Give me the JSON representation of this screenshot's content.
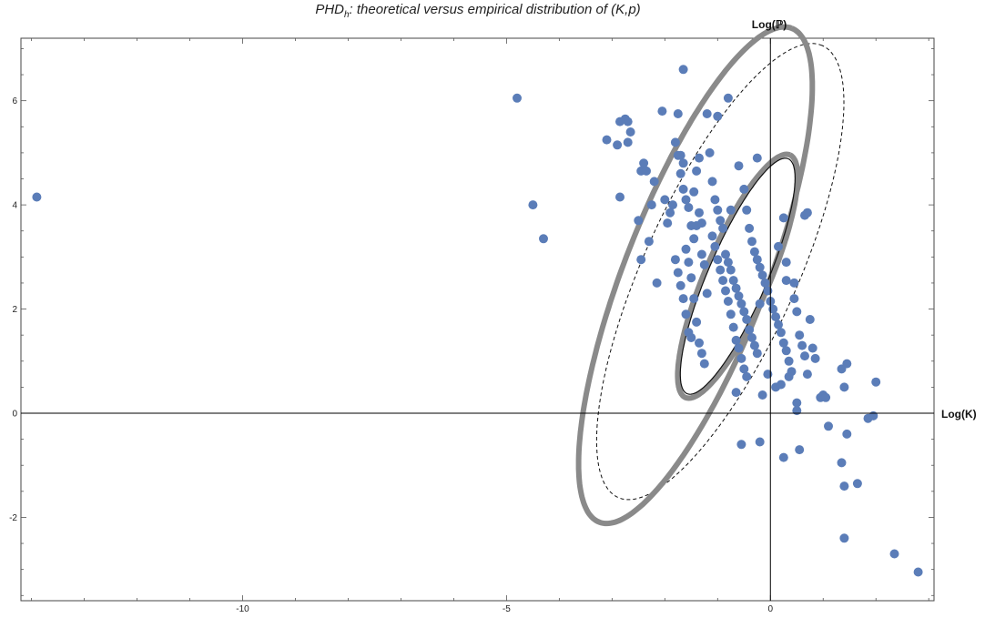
{
  "chart_data": {
    "type": "scatter",
    "title_parts": [
      "PHD",
      "h",
      ": theoretical versus empirical distribution of ",
      "(K,p)"
    ],
    "xlabel": "Log(K)",
    "ylabel": "Log(ℙ)",
    "xlim": [
      -14.2,
      3.1
    ],
    "ylim": [
      -3.6,
      7.2
    ],
    "x_ticks": [
      -10,
      -5,
      0
    ],
    "x_tick_labels": [
      "-10",
      "-5",
      "0"
    ],
    "y_ticks": [
      -2,
      0,
      2,
      4,
      6
    ],
    "y_tick_labels": [
      "-2",
      "0",
      "2",
      "4",
      "6"
    ],
    "grid": false,
    "colors": {
      "points": "#5b7db8",
      "thick_ellipse": "#8a8a8a",
      "thin_ellipse": "#111111",
      "axes": "#000000"
    },
    "ellipses": [
      {
        "name": "",
        "style": "thick-gray",
        "cx": -0.62,
        "cy": 2.63,
        "a": 2.53,
        "b": 0.61,
        "angle_deg": 67
      },
      {
        "name": "",
        "style": "thick-gray",
        "cx": -1.42,
        "cy": 2.65,
        "a": 5.08,
        "b": 1.35,
        "angle_deg": 69
      },
      {
        "name": "",
        "style": "thin-solid",
        "cx": -0.62,
        "cy": 2.63,
        "a": 2.45,
        "b": 0.56,
        "angle_deg": 67
      },
      {
        "name": "",
        "style": "thin-dashed",
        "cx": -0.95,
        "cy": 2.72,
        "a": 4.75,
        "b": 1.45,
        "angle_deg": 66
      }
    ],
    "points": [
      [
        -13.9,
        4.15
      ],
      [
        -4.8,
        6.05
      ],
      [
        -4.5,
        4.0
      ],
      [
        -4.3,
        3.35
      ],
      [
        -3.1,
        5.25
      ],
      [
        -2.9,
        5.15
      ],
      [
        -2.85,
        4.15
      ],
      [
        -2.75,
        5.65
      ],
      [
        -2.7,
        5.6
      ],
      [
        -2.65,
        5.4
      ],
      [
        -2.7,
        5.2
      ],
      [
        -2.5,
        3.7
      ],
      [
        -2.45,
        4.65
      ],
      [
        -2.4,
        4.8
      ],
      [
        -2.35,
        4.65
      ],
      [
        -2.45,
        2.95
      ],
      [
        -2.3,
        3.3
      ],
      [
        -2.25,
        4.0
      ],
      [
        -2.2,
        4.45
      ],
      [
        -2.15,
        2.5
      ],
      [
        -2.05,
        5.8
      ],
      [
        -2.0,
        4.1
      ],
      [
        -1.95,
        3.65
      ],
      [
        -1.9,
        3.85
      ],
      [
        -1.85,
        4.0
      ],
      [
        -1.8,
        5.2
      ],
      [
        -1.75,
        4.95
      ],
      [
        -1.7,
        4.6
      ],
      [
        -1.65,
        4.3
      ],
      [
        -1.6,
        4.1
      ],
      [
        -1.55,
        3.95
      ],
      [
        -1.5,
        3.6
      ],
      [
        -1.45,
        4.25
      ],
      [
        -1.4,
        4.65
      ],
      [
        -1.35,
        4.9
      ],
      [
        -1.3,
        3.05
      ],
      [
        -1.25,
        2.85
      ],
      [
        -1.2,
        2.3
      ],
      [
        -1.75,
        5.75
      ],
      [
        -1.7,
        4.95
      ],
      [
        -1.65,
        4.8
      ],
      [
        -1.6,
        3.15
      ],
      [
        -1.55,
        2.9
      ],
      [
        -1.5,
        2.6
      ],
      [
        -1.45,
        2.2
      ],
      [
        -1.4,
        1.75
      ],
      [
        -1.35,
        1.35
      ],
      [
        -1.3,
        1.15
      ],
      [
        -1.25,
        0.95
      ],
      [
        -1.2,
        5.75
      ],
      [
        -1.15,
        5.0
      ],
      [
        -1.1,
        4.45
      ],
      [
        -1.05,
        4.1
      ],
      [
        -1.0,
        3.9
      ],
      [
        -0.95,
        3.7
      ],
      [
        -0.9,
        3.55
      ],
      [
        -0.85,
        3.05
      ],
      [
        -0.8,
        2.9
      ],
      [
        -0.75,
        2.75
      ],
      [
        -0.7,
        2.55
      ],
      [
        -0.65,
        2.4
      ],
      [
        -0.6,
        2.25
      ],
      [
        -0.55,
        2.1
      ],
      [
        -0.5,
        1.95
      ],
      [
        -0.45,
        1.8
      ],
      [
        -0.4,
        1.6
      ],
      [
        -0.35,
        1.45
      ],
      [
        -0.3,
        1.3
      ],
      [
        -0.25,
        1.15
      ],
      [
        -1.0,
        5.7
      ],
      [
        -0.8,
        6.05
      ],
      [
        -0.6,
        4.75
      ],
      [
        -0.5,
        4.3
      ],
      [
        -0.45,
        3.9
      ],
      [
        -0.4,
        3.55
      ],
      [
        -0.35,
        3.3
      ],
      [
        -0.3,
        3.1
      ],
      [
        -0.25,
        2.95
      ],
      [
        -0.2,
        2.8
      ],
      [
        -0.15,
        2.65
      ],
      [
        -0.1,
        2.5
      ],
      [
        -0.05,
        2.35
      ],
      [
        0.0,
        2.15
      ],
      [
        0.05,
        2.0
      ],
      [
        0.1,
        1.85
      ],
      [
        0.15,
        1.7
      ],
      [
        0.2,
        1.55
      ],
      [
        0.25,
        1.35
      ],
      [
        0.3,
        1.2
      ],
      [
        0.35,
        1.0
      ],
      [
        0.4,
        0.8
      ],
      [
        -0.25,
        4.9
      ],
      [
        0.25,
        3.75
      ],
      [
        0.3,
        2.9
      ],
      [
        0.45,
        2.2
      ],
      [
        0.5,
        1.95
      ],
      [
        0.55,
        1.5
      ],
      [
        0.6,
        1.3
      ],
      [
        0.65,
        1.1
      ],
      [
        0.65,
        3.8
      ],
      [
        0.7,
        3.85
      ],
      [
        0.75,
        1.8
      ],
      [
        0.8,
        1.25
      ],
      [
        0.85,
        1.05
      ],
      [
        0.7,
        0.75
      ],
      [
        -1.8,
        2.95
      ],
      [
        -1.75,
        2.7
      ],
      [
        -1.7,
        2.45
      ],
      [
        -1.65,
        2.2
      ],
      [
        -1.6,
        1.9
      ],
      [
        -1.55,
        1.55
      ],
      [
        -1.5,
        1.45
      ],
      [
        -1.45,
        3.35
      ],
      [
        -1.4,
        3.6
      ],
      [
        -1.35,
        3.85
      ],
      [
        -1.3,
        3.65
      ],
      [
        -1.1,
        3.4
      ],
      [
        -1.05,
        3.2
      ],
      [
        -1.0,
        2.95
      ],
      [
        -0.95,
        2.75
      ],
      [
        -0.9,
        2.55
      ],
      [
        -0.85,
        2.35
      ],
      [
        -0.8,
        2.15
      ],
      [
        -0.75,
        1.9
      ],
      [
        -0.7,
        1.65
      ],
      [
        -0.65,
        1.4
      ],
      [
        -0.6,
        1.25
      ],
      [
        -0.55,
        1.05
      ],
      [
        -0.5,
        0.85
      ],
      [
        -0.45,
        0.7
      ],
      [
        -0.15,
        0.35
      ],
      [
        -0.05,
        0.75
      ],
      [
        0.1,
        0.5
      ],
      [
        0.2,
        0.55
      ],
      [
        0.35,
        0.7
      ],
      [
        -0.65,
        0.4
      ],
      [
        0.5,
        0.2
      ],
      [
        0.5,
        0.05
      ],
      [
        0.95,
        0.3
      ],
      [
        1.0,
        0.35
      ],
      [
        1.05,
        0.3
      ],
      [
        1.1,
        -0.25
      ],
      [
        1.35,
        0.85
      ],
      [
        1.4,
        0.5
      ],
      [
        1.45,
        0.95
      ],
      [
        1.35,
        -0.95
      ],
      [
        1.45,
        -0.4
      ],
      [
        1.85,
        -0.1
      ],
      [
        1.95,
        -0.05
      ],
      [
        2.0,
        0.6
      ],
      [
        1.4,
        -1.4
      ],
      [
        1.65,
        -1.35
      ],
      [
        0.25,
        -0.85
      ],
      [
        0.55,
        -0.7
      ],
      [
        -0.2,
        -0.55
      ],
      [
        -0.55,
        -0.6
      ],
      [
        1.4,
        -2.4
      ],
      [
        2.35,
        -2.7
      ],
      [
        2.8,
        -3.05
      ],
      [
        -2.85,
        5.6
      ],
      [
        -1.65,
        6.6
      ],
      [
        -0.75,
        3.9
      ],
      [
        0.15,
        3.2
      ],
      [
        0.3,
        2.55
      ],
      [
        0.45,
        2.5
      ],
      [
        -0.2,
        2.1
      ]
    ]
  }
}
